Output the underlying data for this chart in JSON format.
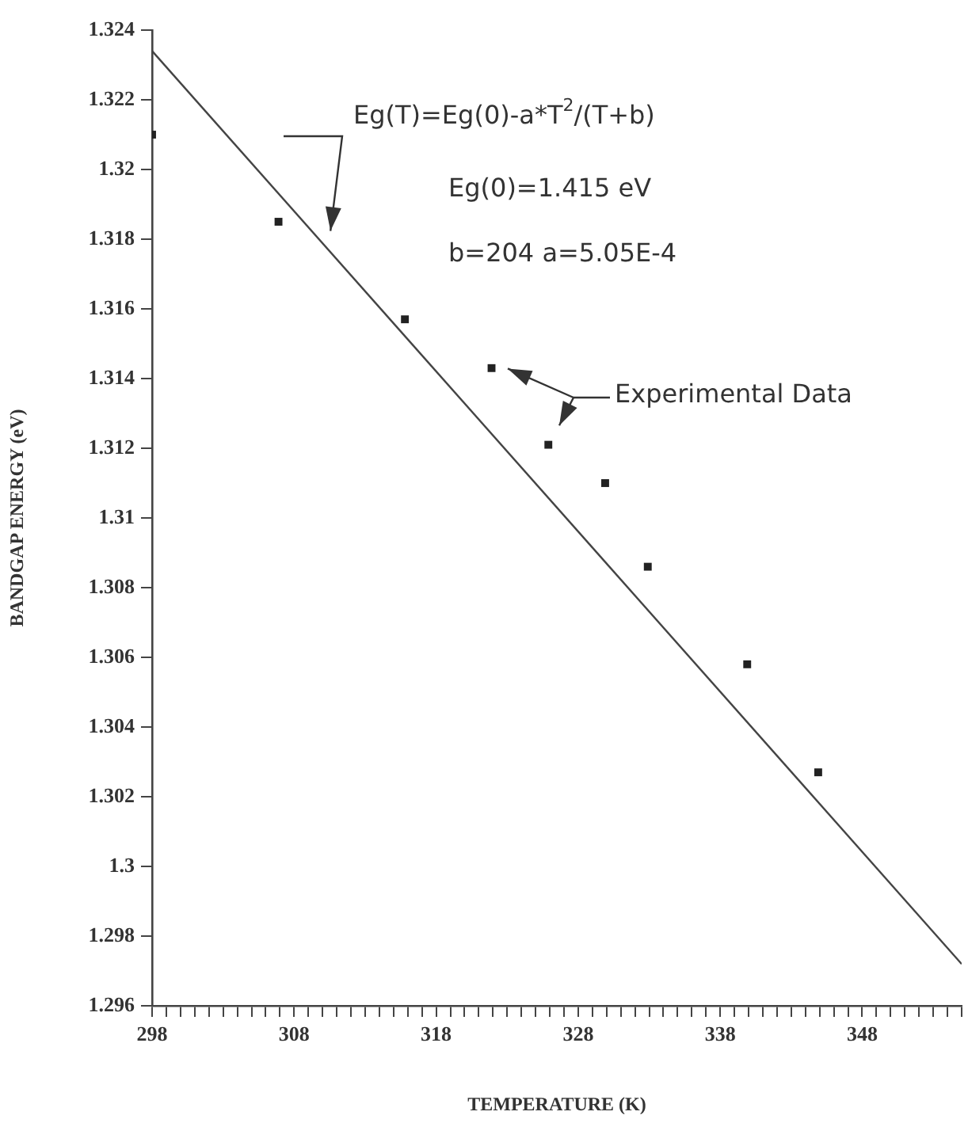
{
  "chart_data": {
    "type": "scatter",
    "xlabel": "TEMPERATURE (K)",
    "ylabel": "BANDGAP ENERGY (eV)",
    "xlim": [
      298,
      355
    ],
    "ylim": [
      1.296,
      1.324
    ],
    "xticks": [
      298,
      {
        "value": 299,
        "label": null
      },
      {
        "value": 300,
        "label": null
      },
      {
        "value": 301,
        "label": null
      },
      {
        "value": 302,
        "label": null
      },
      {
        "value": 303,
        "label": null
      },
      {
        "value": 304,
        "label": null
      },
      {
        "value": 305,
        "label": null
      },
      {
        "value": 306,
        "label": null
      },
      {
        "value": 307,
        "label": null
      },
      308,
      {
        "value": 309,
        "label": null
      },
      {
        "value": 310,
        "label": null
      },
      {
        "value": 311,
        "label": null
      },
      {
        "value": 312,
        "label": null
      },
      {
        "value": 313,
        "label": null
      },
      {
        "value": 314,
        "label": null
      },
      {
        "value": 315,
        "label": null
      },
      {
        "value": 316,
        "label": null
      },
      {
        "value": 317,
        "label": null
      },
      318,
      {
        "value": 319,
        "label": null
      },
      {
        "value": 320,
        "label": null
      },
      {
        "value": 321,
        "label": null
      },
      {
        "value": 322,
        "label": null
      },
      {
        "value": 323,
        "label": null
      },
      {
        "value": 324,
        "label": null
      },
      {
        "value": 325,
        "label": null
      },
      {
        "value": 326,
        "label": null
      },
      {
        "value": 327,
        "label": null
      },
      328,
      {
        "value": 329,
        "label": null
      },
      {
        "value": 330,
        "label": null
      },
      {
        "value": 331,
        "label": null
      },
      {
        "value": 332,
        "label": null
      },
      {
        "value": 333,
        "label": null
      },
      {
        "value": 334,
        "label": null
      },
      {
        "value": 335,
        "label": null
      },
      {
        "value": 336,
        "label": null
      },
      {
        "value": 337,
        "label": null
      },
      338,
      {
        "value": 339,
        "label": null
      },
      {
        "value": 340,
        "label": null
      },
      {
        "value": 341,
        "label": null
      },
      {
        "value": 342,
        "label": null
      },
      {
        "value": 343,
        "label": null
      },
      {
        "value": 344,
        "label": null
      },
      {
        "value": 345,
        "label": null
      },
      {
        "value": 346,
        "label": null
      },
      {
        "value": 347,
        "label": null
      },
      348,
      {
        "value": 349,
        "label": null
      },
      {
        "value": 350,
        "label": null
      },
      {
        "value": 351,
        "label": null
      },
      {
        "value": 352,
        "label": null
      },
      {
        "value": 353,
        "label": null
      },
      {
        "value": 354,
        "label": null
      },
      {
        "value": 355,
        "label": null
      }
    ],
    "yticks": [
      1.296,
      1.298,
      1.3,
      1.302,
      1.304,
      1.306,
      1.308,
      1.31,
      1.312,
      1.314,
      1.316,
      1.318,
      1.32,
      1.322,
      1.324
    ],
    "grid": false,
    "series": [
      {
        "type": "line",
        "color": "#444444",
        "marker": "none",
        "x": [
          298,
          355
        ],
        "values": [
          1.3234,
          1.2972
        ]
      },
      {
        "type": "scatter",
        "color": "#222222",
        "marker": "square",
        "x": [
          298,
          306.9,
          315.8,
          321.9,
          325.9,
          329.9,
          332.9,
          339.9,
          344.9
        ],
        "values": [
          1.321,
          1.3185,
          1.3157,
          1.3143,
          1.3121,
          1.311,
          1.3086,
          1.3058,
          1.3027
        ]
      }
    ],
    "annotations": [
      "Eg(T)=Eg(0)-a*T$^{2}$/(T+b)",
      "Eg(0)=1.415 eV",
      "b=204 a=5.05E-4",
      "Experimental Data"
    ]
  }
}
